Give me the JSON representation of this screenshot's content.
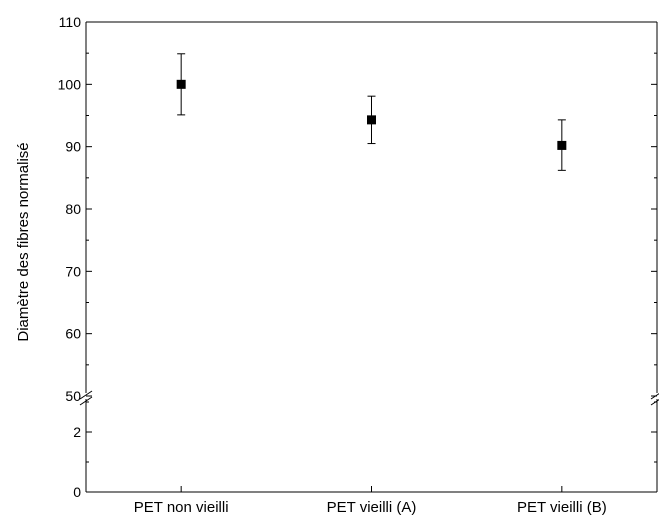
{
  "chart_data": {
    "type": "scatter",
    "ylabel": "Diamètre des fibres normalisé",
    "xlabel": "",
    "categories": [
      "PET non vieilli",
      "PET vieilli  (A)",
      "PET vieilli (B)"
    ],
    "y_axis_upper": {
      "range": [
        50,
        110
      ],
      "ticks": [
        "50",
        "60",
        "70",
        "80",
        "90",
        "100",
        "110"
      ]
    },
    "y_axis_lower": {
      "range": [
        0,
        3
      ],
      "ticks": [
        "0",
        "2"
      ]
    },
    "axis_break": true,
    "series": [
      {
        "marker": "square",
        "color": "#000000",
        "values": [
          100.0,
          94.3,
          90.2
        ],
        "error_low": [
          95.1,
          90.5,
          86.2
        ],
        "error_high": [
          104.9,
          98.1,
          94.3
        ]
      }
    ]
  }
}
